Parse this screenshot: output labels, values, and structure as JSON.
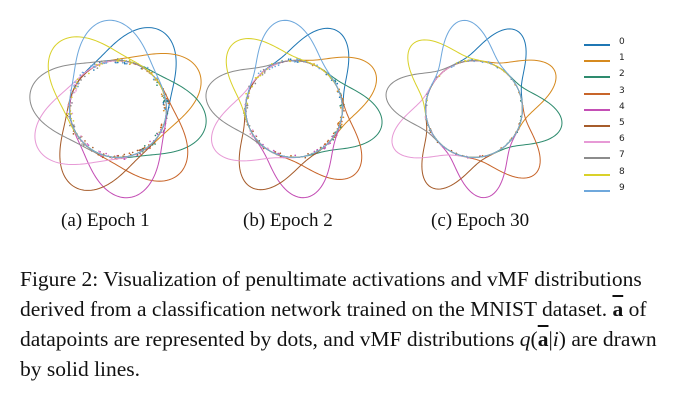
{
  "colors": [
    "#1f77b4",
    "#d68a1f",
    "#2e8b6e",
    "#c8652a",
    "#c44fb5",
    "#a65c2b",
    "#e79ad6",
    "#8c8c8c",
    "#d9d12a",
    "#6fa8dc"
  ],
  "panels": [
    {
      "caption": "(a) Epoch 1",
      "spread": 0.9,
      "dot_density": 1.0
    },
    {
      "caption": "(b) Epoch 2",
      "spread": 0.75,
      "dot_density": 0.75
    },
    {
      "caption": "(c) Epoch 30",
      "spread": 0.55,
      "dot_density": 0.35
    }
  ],
  "legend": {
    "labels": [
      "0",
      "1",
      "2",
      "3",
      "4",
      "5",
      "6",
      "7",
      "8",
      "9"
    ]
  },
  "caption": {
    "part1": "Figure 2: Visualization of penultimate activations and vMF distributions derived from a classification network trained on the MNIST dataset. ",
    "abar": "a",
    "part2": " of datapoints are represented by dots, and vMF distributions ",
    "q": "q",
    "paren_open": "(",
    "abar2": "a",
    "bar": "|",
    "i": "i",
    "paren_close": ")",
    "part3": " are drawn by solid lines."
  }
}
